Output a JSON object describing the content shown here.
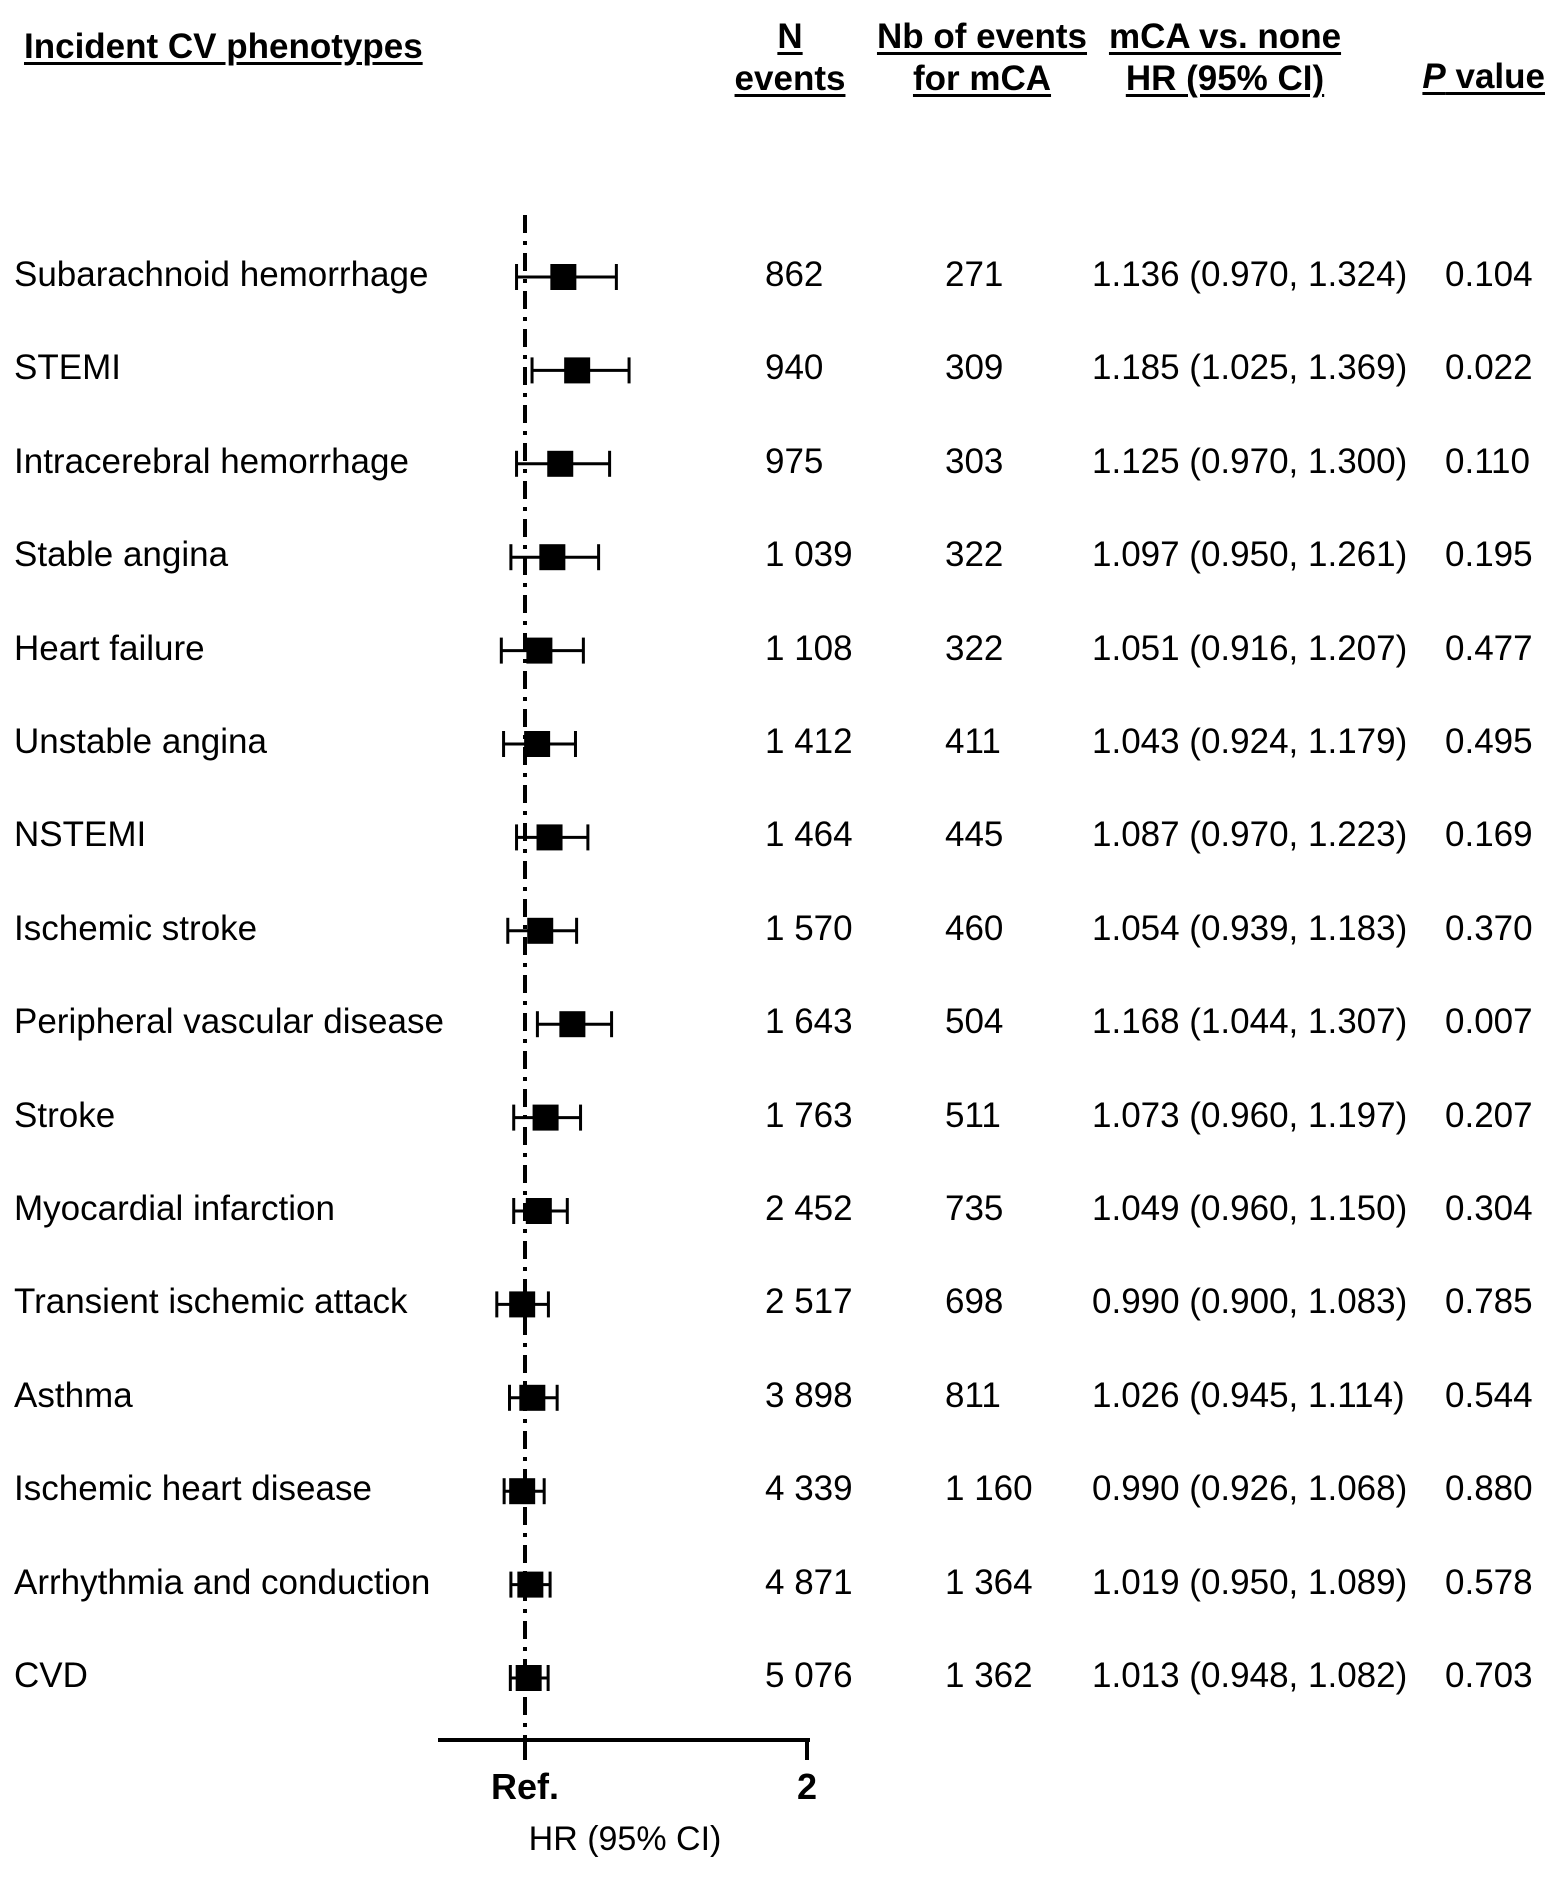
{
  "headers": {
    "phenotype": "Incident CV phenotypes",
    "n_line1": "N",
    "n_line2": "events",
    "nb_line1": "Nb of events",
    "nb_line2": "for mCA",
    "hr_line1": "mCA vs. none",
    "hr_line2": "HR (95% CI)",
    "p_italic": "P",
    "p_rest": " value"
  },
  "chart_data": {
    "type": "forest",
    "xlabel": "HR (95% CI)",
    "x_ticks": [
      {
        "value": 1,
        "label": "Ref."
      },
      {
        "value": 2,
        "label": "2"
      }
    ],
    "reference_value": 1,
    "rows": [
      {
        "label": "Subarachnoid hemorrhage",
        "n": "862",
        "nb": "271",
        "hr": 1.136,
        "lo": 0.97,
        "hi": 1.324,
        "hr_text": "1.136 (0.970, 1.324)",
        "p": "0.104"
      },
      {
        "label": "STEMI",
        "n": "940",
        "nb": "309",
        "hr": 1.185,
        "lo": 1.025,
        "hi": 1.369,
        "hr_text": "1.185 (1.025, 1.369)",
        "p": "0.022"
      },
      {
        "label": "Intracerebral hemorrhage",
        "n": "975",
        "nb": "303",
        "hr": 1.125,
        "lo": 0.97,
        "hi": 1.3,
        "hr_text": "1.125 (0.970, 1.300)",
        "p": "0.110"
      },
      {
        "label": "Stable angina",
        "n": "1 039",
        "nb": "322",
        "hr": 1.097,
        "lo": 0.95,
        "hi": 1.261,
        "hr_text": "1.097 (0.950, 1.261)",
        "p": "0.195"
      },
      {
        "label": "Heart failure",
        "n": "1 108",
        "nb": "322",
        "hr": 1.051,
        "lo": 0.916,
        "hi": 1.207,
        "hr_text": "1.051 (0.916, 1.207)",
        "p": "0.477"
      },
      {
        "label": "Unstable angina",
        "n": "1 412",
        "nb": "411",
        "hr": 1.043,
        "lo": 0.924,
        "hi": 1.179,
        "hr_text": "1.043 (0.924, 1.179)",
        "p": "0.495"
      },
      {
        "label": "NSTEMI",
        "n": "1 464",
        "nb": "445",
        "hr": 1.087,
        "lo": 0.97,
        "hi": 1.223,
        "hr_text": "1.087 (0.970, 1.223)",
        "p": "0.169"
      },
      {
        "label": "Ischemic stroke",
        "n": "1 570",
        "nb": "460",
        "hr": 1.054,
        "lo": 0.939,
        "hi": 1.183,
        "hr_text": "1.054 (0.939, 1.183)",
        "p": "0.370"
      },
      {
        "label": "Peripheral vascular disease",
        "n": "1 643",
        "nb": "504",
        "hr": 1.168,
        "lo": 1.044,
        "hi": 1.307,
        "hr_text": "1.168 (1.044, 1.307)",
        "p": "0.007"
      },
      {
        "label": "Stroke",
        "n": "1 763",
        "nb": "511",
        "hr": 1.073,
        "lo": 0.96,
        "hi": 1.197,
        "hr_text": "1.073 (0.960, 1.197)",
        "p": "0.207"
      },
      {
        "label": "Myocardial infarction",
        "n": "2 452",
        "nb": "735",
        "hr": 1.049,
        "lo": 0.96,
        "hi": 1.15,
        "hr_text": "1.049 (0.960, 1.150)",
        "p": "0.304"
      },
      {
        "label": "Transient ischemic attack",
        "n": "2 517",
        "nb": "698",
        "hr": 0.99,
        "lo": 0.9,
        "hi": 1.083,
        "hr_text": "0.990 (0.900, 1.083)",
        "p": "0.785"
      },
      {
        "label": "Asthma",
        "n": "3 898",
        "nb": "811",
        "hr": 1.026,
        "lo": 0.945,
        "hi": 1.114,
        "hr_text": "1.026 (0.945, 1.114)",
        "p": "0.544"
      },
      {
        "label": "Ischemic heart disease",
        "n": "4 339",
        "nb": "1 160",
        "hr": 0.99,
        "lo": 0.926,
        "hi": 1.068,
        "hr_text": "0.990 (0.926, 1.068)",
        "p": "0.880"
      },
      {
        "label": "Arrhythmia and conduction",
        "n": "4 871",
        "nb": "1 364",
        "hr": 1.019,
        "lo": 0.95,
        "hi": 1.089,
        "hr_text": "1.019 (0.950, 1.089)",
        "p": "0.578"
      },
      {
        "label": "CVD",
        "n": "5 076",
        "nb": "1 362",
        "hr": 1.013,
        "lo": 0.948,
        "hi": 1.082,
        "hr_text": "1.013 (0.948, 1.082)",
        "p": "0.703"
      }
    ]
  }
}
